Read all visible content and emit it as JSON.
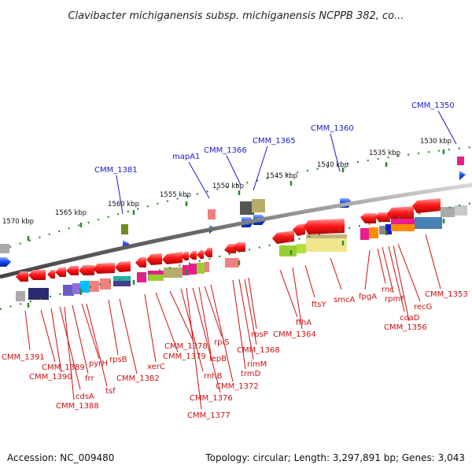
{
  "title": "Clavibacter michiganensis subsp. michiganensis NCPPB 382, co...",
  "footer": {
    "accession": "Accession: NC_009480",
    "topology": "Topology: circular; Length: 3,297,891 bp; Genes: 3,043"
  },
  "colors": {
    "blue_label": "#1a1acc",
    "red_label": "#cc1111",
    "backbone": "#7a7a7a",
    "ticks": "#2a8a2a",
    "forward_gene": "#1a4cff",
    "reverse_gene": "#ff1a1a"
  },
  "scale_labels": [
    "1570 kbp",
    "1565 kbp",
    "1560 kbp",
    "1555 kbp",
    "1550 kbp",
    "1545 kbp",
    "1540 kbp",
    "1535 kbp",
    "1530 kbp"
  ],
  "top_genes": [
    "CMM_1350",
    "CMM_1360",
    "CMM_1365",
    "CMM_1366",
    "mapA1",
    "CMM_1381"
  ],
  "bottom_genes": [
    "CMM_1391",
    "CMM_1389",
    "CMM_1390",
    "cdsA",
    "CMM_1388",
    "frr",
    "pyrH",
    "tsf",
    "rpsB",
    "CMM_1382",
    "xerC",
    "CMM_1379",
    "CMM_1378",
    "rnhB",
    "CMM_1377",
    "CMM_1376",
    "lepB",
    "rplS",
    "CMM_1372",
    "trmD",
    "rimM",
    "CMM_1368",
    "rpsP",
    "ffhA",
    "CMM_1364",
    "ftsY",
    "smcA",
    "fpgA",
    "rnc",
    "rpmF",
    "coaD",
    "CMM_1356",
    "recG",
    "CMM_1353"
  ]
}
